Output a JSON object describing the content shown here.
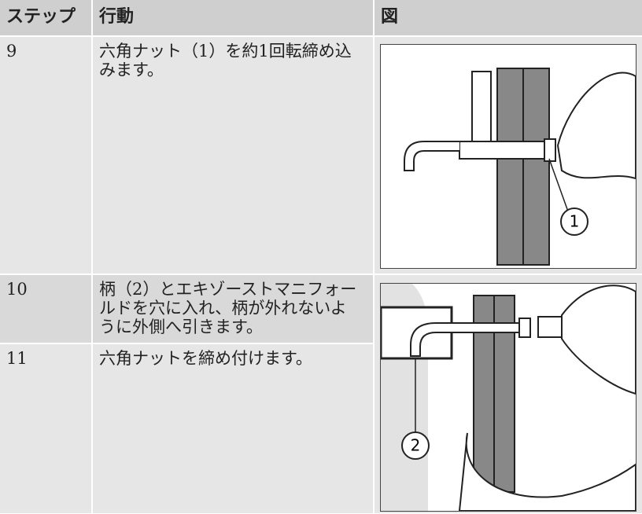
{
  "table": {
    "headers": [
      "ステップ",
      "行動",
      "図"
    ],
    "rows": [
      {
        "step": "9",
        "action": "六角ナット（1）を約1回転締め込みます。"
      },
      {
        "step": "10",
        "action": "柄（2）とエキゾーストマニフォールドを穴に入れ、柄が外れないように外側へ引きます。"
      },
      {
        "step": "11",
        "action": "六角ナットを締め付けます。"
      }
    ],
    "figures": [
      {
        "callout": "1"
      },
      {
        "callout": "2"
      }
    ]
  }
}
